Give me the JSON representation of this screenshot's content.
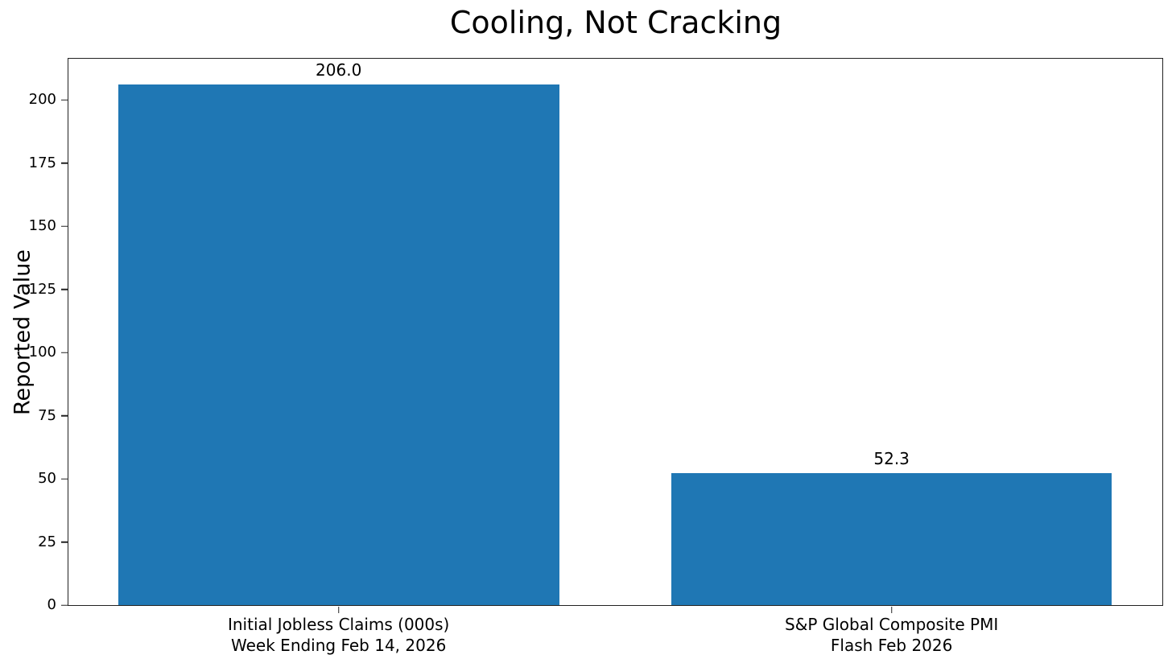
{
  "figure": {
    "title": "Cooling, Not Cracking",
    "ylabel": "Reported Value",
    "background": "#ffffff",
    "spine_color": "#222222",
    "text_color": "#000000"
  },
  "chart_data": {
    "type": "bar",
    "title": "Cooling, Not Cracking",
    "xlabel": "",
    "ylabel": "Reported Value",
    "categories": [
      "Initial Jobless Claims (000s)\nWeek Ending Feb 14, 2026",
      "S&P Global Composite PMI\nFlash Feb 2026"
    ],
    "values": [
      206.0,
      52.3
    ],
    "bar_labels": [
      "206.0",
      "52.3"
    ],
    "yticks": [
      0,
      25,
      50,
      75,
      100,
      125,
      150,
      175,
      200
    ],
    "ylim": [
      0,
      216.3
    ],
    "grid": false,
    "legend": null,
    "bar_color": "#1f77b4",
    "layout": {
      "bar_centers_pct": [
        24.7,
        75.25
      ],
      "bar_width_pct": 40.3
    }
  }
}
